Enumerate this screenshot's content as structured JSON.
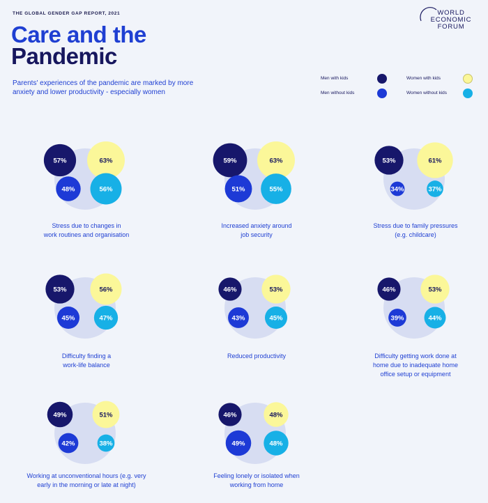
{
  "header": {
    "report_label": "THE GLOBAL GENDER GAP REPORT, 2021",
    "title_line1": "Care and the",
    "title_line2": "Pandemic",
    "subtitle": "Parents' experiences of the pandemic are marked by more anxiety and lower productivity - especially women"
  },
  "logo": {
    "line1": "WORLD",
    "line2": "ECONOMIC",
    "line3": "FORUM"
  },
  "colors": {
    "men_with_kids": "#17176b",
    "men_without_kids": "#1d3ad6",
    "women_with_kids": "#fbf799",
    "women_without_kids": "#17b0e6",
    "background_circle": "#d7ddf2"
  },
  "legend": {
    "men_with_kids": "Men with kids",
    "men_without_kids": "Men without kids",
    "women_with_kids": "Women with kids",
    "women_without_kids": "Women without kids"
  },
  "chart_data": {
    "type": "bubble-grid",
    "series": [
      "Men with kids",
      "Men without kids",
      "Women with kids",
      "Women without kids"
    ],
    "items": [
      {
        "caption": [
          "Stress due to changes in",
          "work routines and organisation"
        ],
        "men_with_kids": "57%",
        "men_without_kids": "48%",
        "women_with_kids": "63%",
        "women_without_kids": "56%"
      },
      {
        "caption": [
          "Increased anxiety around",
          "job security"
        ],
        "men_with_kids": "59%",
        "men_without_kids": "51%",
        "women_with_kids": "63%",
        "women_without_kids": "55%"
      },
      {
        "caption": [
          "Stress due to family pressures",
          "(e.g. childcare)"
        ],
        "men_with_kids": "53%",
        "men_without_kids": "34%",
        "women_with_kids": "61%",
        "women_without_kids": "37%"
      },
      {
        "caption": [
          "Difficulty finding a",
          "work-life balance"
        ],
        "men_with_kids": "53%",
        "men_without_kids": "45%",
        "women_with_kids": "56%",
        "women_without_kids": "47%"
      },
      {
        "caption": [
          "Reduced productivity"
        ],
        "men_with_kids": "46%",
        "men_without_kids": "43%",
        "women_with_kids": "53%",
        "women_without_kids": "45%"
      },
      {
        "caption": [
          "Difficulty getting work done at",
          "home due to inadequate home",
          "office setup or equipment"
        ],
        "men_with_kids": "46%",
        "men_without_kids": "39%",
        "women_with_kids": "53%",
        "women_without_kids": "44%"
      },
      {
        "caption": [
          "Working at unconventional hours (e.g. very",
          "early in the morning or late at night)"
        ],
        "men_with_kids": "49%",
        "men_without_kids": "42%",
        "women_with_kids": "51%",
        "women_without_kids": "38%"
      },
      {
        "caption": [
          "Feeling lonely or isolated when",
          "working from home"
        ],
        "men_with_kids": "46%",
        "men_without_kids": "49%",
        "women_with_kids": "48%",
        "women_without_kids": "48%"
      }
    ]
  }
}
